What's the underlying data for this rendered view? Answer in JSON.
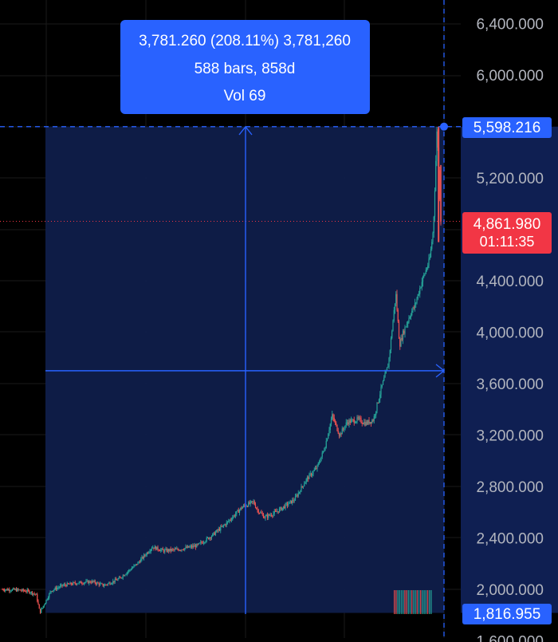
{
  "measure": {
    "line1": "3,781.260 (208.11%) 3,781,260",
    "line2": "588 bars, 858d",
    "line3": "Vol 69"
  },
  "price_axis": {
    "ticks": [
      "6,400.000",
      "6,000.000",
      "5,200.000",
      "4,400.000",
      "4,000.000",
      "3,600.000",
      "3,200.000",
      "2,800.000",
      "2,400.000",
      "2,000.000",
      "1,600.000"
    ],
    "tick_values": [
      6400,
      6000,
      5200,
      4400,
      4000,
      3600,
      3200,
      2800,
      2400,
      2000,
      1600
    ]
  },
  "labels": {
    "high": {
      "text": "5,598.216",
      "value": 5598.216,
      "color": "#2962ff"
    },
    "last": {
      "text": "4,861.980",
      "countdown": "01:11:35",
      "value": 4861.98,
      "color": "#f23645"
    },
    "low": {
      "text": "1,816.955",
      "value": 1816.955,
      "color": "#2962ff"
    },
    "crosshair_value": 3700
  },
  "colors": {
    "up": "#26a69a",
    "down": "#ef5350",
    "range_fill": "#0f1e4a",
    "measure_box": "#2962ff",
    "grid": "#1a1a1a",
    "axis_text": "#b2b5be"
  },
  "chart_data": {
    "type": "candlestick",
    "title": "",
    "xlabel": "",
    "ylabel": "",
    "ylim": [
      1600,
      6500
    ],
    "grid": true,
    "approx_close_path": [
      [
        0,
        2000
      ],
      [
        4,
        1995
      ],
      [
        7,
        1985
      ],
      [
        9,
        1960
      ],
      [
        10,
        1820
      ],
      [
        13,
        1990
      ],
      [
        16,
        2030
      ],
      [
        20,
        2050
      ],
      [
        24,
        2060
      ],
      [
        27,
        2030
      ],
      [
        31,
        2080
      ],
      [
        36,
        2200
      ],
      [
        40,
        2330
      ],
      [
        43,
        2300
      ],
      [
        47,
        2310
      ],
      [
        52,
        2340
      ],
      [
        56,
        2420
      ],
      [
        60,
        2520
      ],
      [
        64,
        2640
      ],
      [
        67,
        2680
      ],
      [
        68,
        2620
      ],
      [
        70,
        2560
      ],
      [
        73,
        2600
      ],
      [
        75,
        2640
      ],
      [
        78,
        2700
      ],
      [
        81,
        2850
      ],
      [
        84,
        2950
      ],
      [
        86,
        3100
      ],
      [
        88,
        3350
      ],
      [
        90,
        3200
      ],
      [
        92,
        3300
      ],
      [
        95,
        3320
      ],
      [
        97,
        3290
      ],
      [
        99,
        3320
      ],
      [
        101,
        3550
      ],
      [
        103,
        3750
      ],
      [
        105,
        4300
      ],
      [
        106,
        3900
      ],
      [
        107,
        4000
      ],
      [
        109,
        4150
      ],
      [
        110,
        4200
      ],
      [
        112,
        4400
      ],
      [
        114,
        4560
      ],
      [
        115,
        4800
      ],
      [
        116,
        5598.216
      ],
      [
        117,
        4861.98
      ]
    ],
    "volume_note": "Vol 69"
  }
}
